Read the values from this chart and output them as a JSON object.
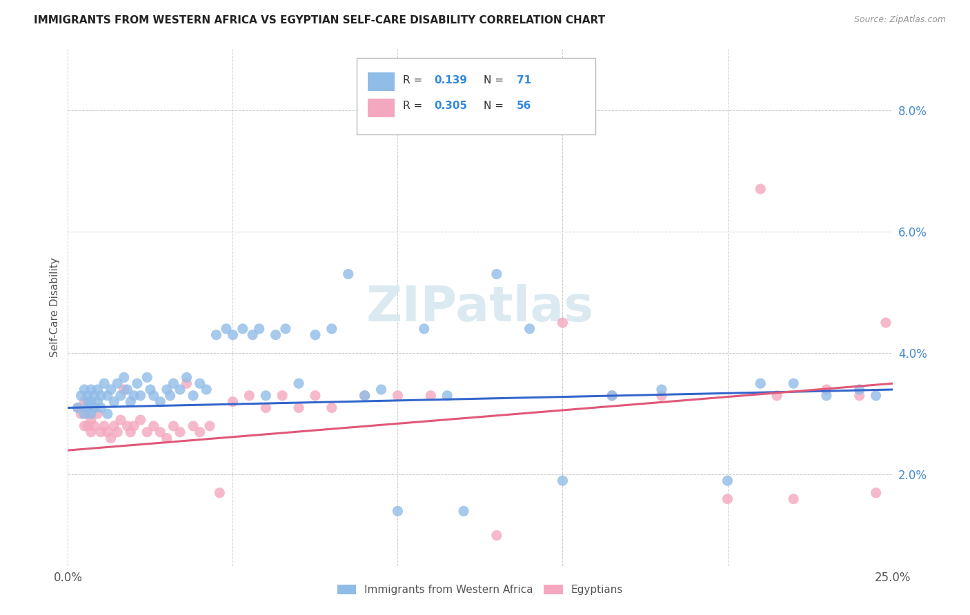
{
  "title": "IMMIGRANTS FROM WESTERN AFRICA VS EGYPTIAN SELF-CARE DISABILITY CORRELATION CHART",
  "source": "Source: ZipAtlas.com",
  "ylabel": "Self-Care Disability",
  "ytick_vals": [
    0.02,
    0.04,
    0.06,
    0.08
  ],
  "xlim": [
    0.0,
    0.25
  ],
  "ylim": [
    0.005,
    0.09
  ],
  "legend_blue_r": "0.139",
  "legend_blue_n": "71",
  "legend_pink_r": "0.305",
  "legend_pink_n": "56",
  "legend1_label": "Immigrants from Western Africa",
  "legend2_label": "Egyptians",
  "blue_color": "#90bce8",
  "pink_color": "#f4a8bf",
  "blue_line_color": "#3366cc",
  "pink_line_color": "#e05878",
  "blue_scatter_x": [
    0.003,
    0.004,
    0.005,
    0.005,
    0.006,
    0.006,
    0.006,
    0.007,
    0.007,
    0.007,
    0.008,
    0.008,
    0.009,
    0.009,
    0.01,
    0.01,
    0.011,
    0.012,
    0.012,
    0.013,
    0.014,
    0.015,
    0.016,
    0.017,
    0.018,
    0.019,
    0.02,
    0.021,
    0.022,
    0.024,
    0.025,
    0.026,
    0.028,
    0.03,
    0.031,
    0.032,
    0.034,
    0.036,
    0.038,
    0.04,
    0.042,
    0.045,
    0.048,
    0.05,
    0.053,
    0.056,
    0.058,
    0.06,
    0.063,
    0.066,
    0.07,
    0.075,
    0.08,
    0.085,
    0.09,
    0.095,
    0.1,
    0.108,
    0.115,
    0.12,
    0.13,
    0.14,
    0.15,
    0.165,
    0.18,
    0.2,
    0.21,
    0.22,
    0.23,
    0.24,
    0.245
  ],
  "blue_scatter_y": [
    0.031,
    0.033,
    0.03,
    0.034,
    0.032,
    0.031,
    0.033,
    0.03,
    0.032,
    0.034,
    0.031,
    0.033,
    0.032,
    0.034,
    0.031,
    0.033,
    0.035,
    0.03,
    0.033,
    0.034,
    0.032,
    0.035,
    0.033,
    0.036,
    0.034,
    0.032,
    0.033,
    0.035,
    0.033,
    0.036,
    0.034,
    0.033,
    0.032,
    0.034,
    0.033,
    0.035,
    0.034,
    0.036,
    0.033,
    0.035,
    0.034,
    0.043,
    0.044,
    0.043,
    0.044,
    0.043,
    0.044,
    0.033,
    0.043,
    0.044,
    0.035,
    0.043,
    0.044,
    0.053,
    0.033,
    0.034,
    0.014,
    0.044,
    0.033,
    0.014,
    0.053,
    0.044,
    0.019,
    0.033,
    0.034,
    0.019,
    0.035,
    0.035,
    0.033,
    0.034,
    0.033
  ],
  "pink_scatter_x": [
    0.003,
    0.004,
    0.005,
    0.005,
    0.006,
    0.006,
    0.007,
    0.007,
    0.008,
    0.008,
    0.009,
    0.01,
    0.011,
    0.012,
    0.013,
    0.014,
    0.015,
    0.016,
    0.017,
    0.018,
    0.019,
    0.02,
    0.022,
    0.024,
    0.026,
    0.028,
    0.03,
    0.032,
    0.034,
    0.036,
    0.038,
    0.04,
    0.043,
    0.046,
    0.05,
    0.055,
    0.06,
    0.065,
    0.07,
    0.075,
    0.08,
    0.09,
    0.1,
    0.11,
    0.13,
    0.15,
    0.165,
    0.18,
    0.2,
    0.21,
    0.215,
    0.22,
    0.23,
    0.24,
    0.245,
    0.248
  ],
  "pink_scatter_y": [
    0.031,
    0.03,
    0.032,
    0.028,
    0.03,
    0.028,
    0.029,
    0.027,
    0.031,
    0.028,
    0.03,
    0.027,
    0.028,
    0.027,
    0.026,
    0.028,
    0.027,
    0.029,
    0.034,
    0.028,
    0.027,
    0.028,
    0.029,
    0.027,
    0.028,
    0.027,
    0.026,
    0.028,
    0.027,
    0.035,
    0.028,
    0.027,
    0.028,
    0.017,
    0.032,
    0.033,
    0.031,
    0.033,
    0.031,
    0.033,
    0.031,
    0.033,
    0.033,
    0.033,
    0.01,
    0.045,
    0.033,
    0.033,
    0.016,
    0.067,
    0.033,
    0.016,
    0.034,
    0.033,
    0.017,
    0.045
  ]
}
